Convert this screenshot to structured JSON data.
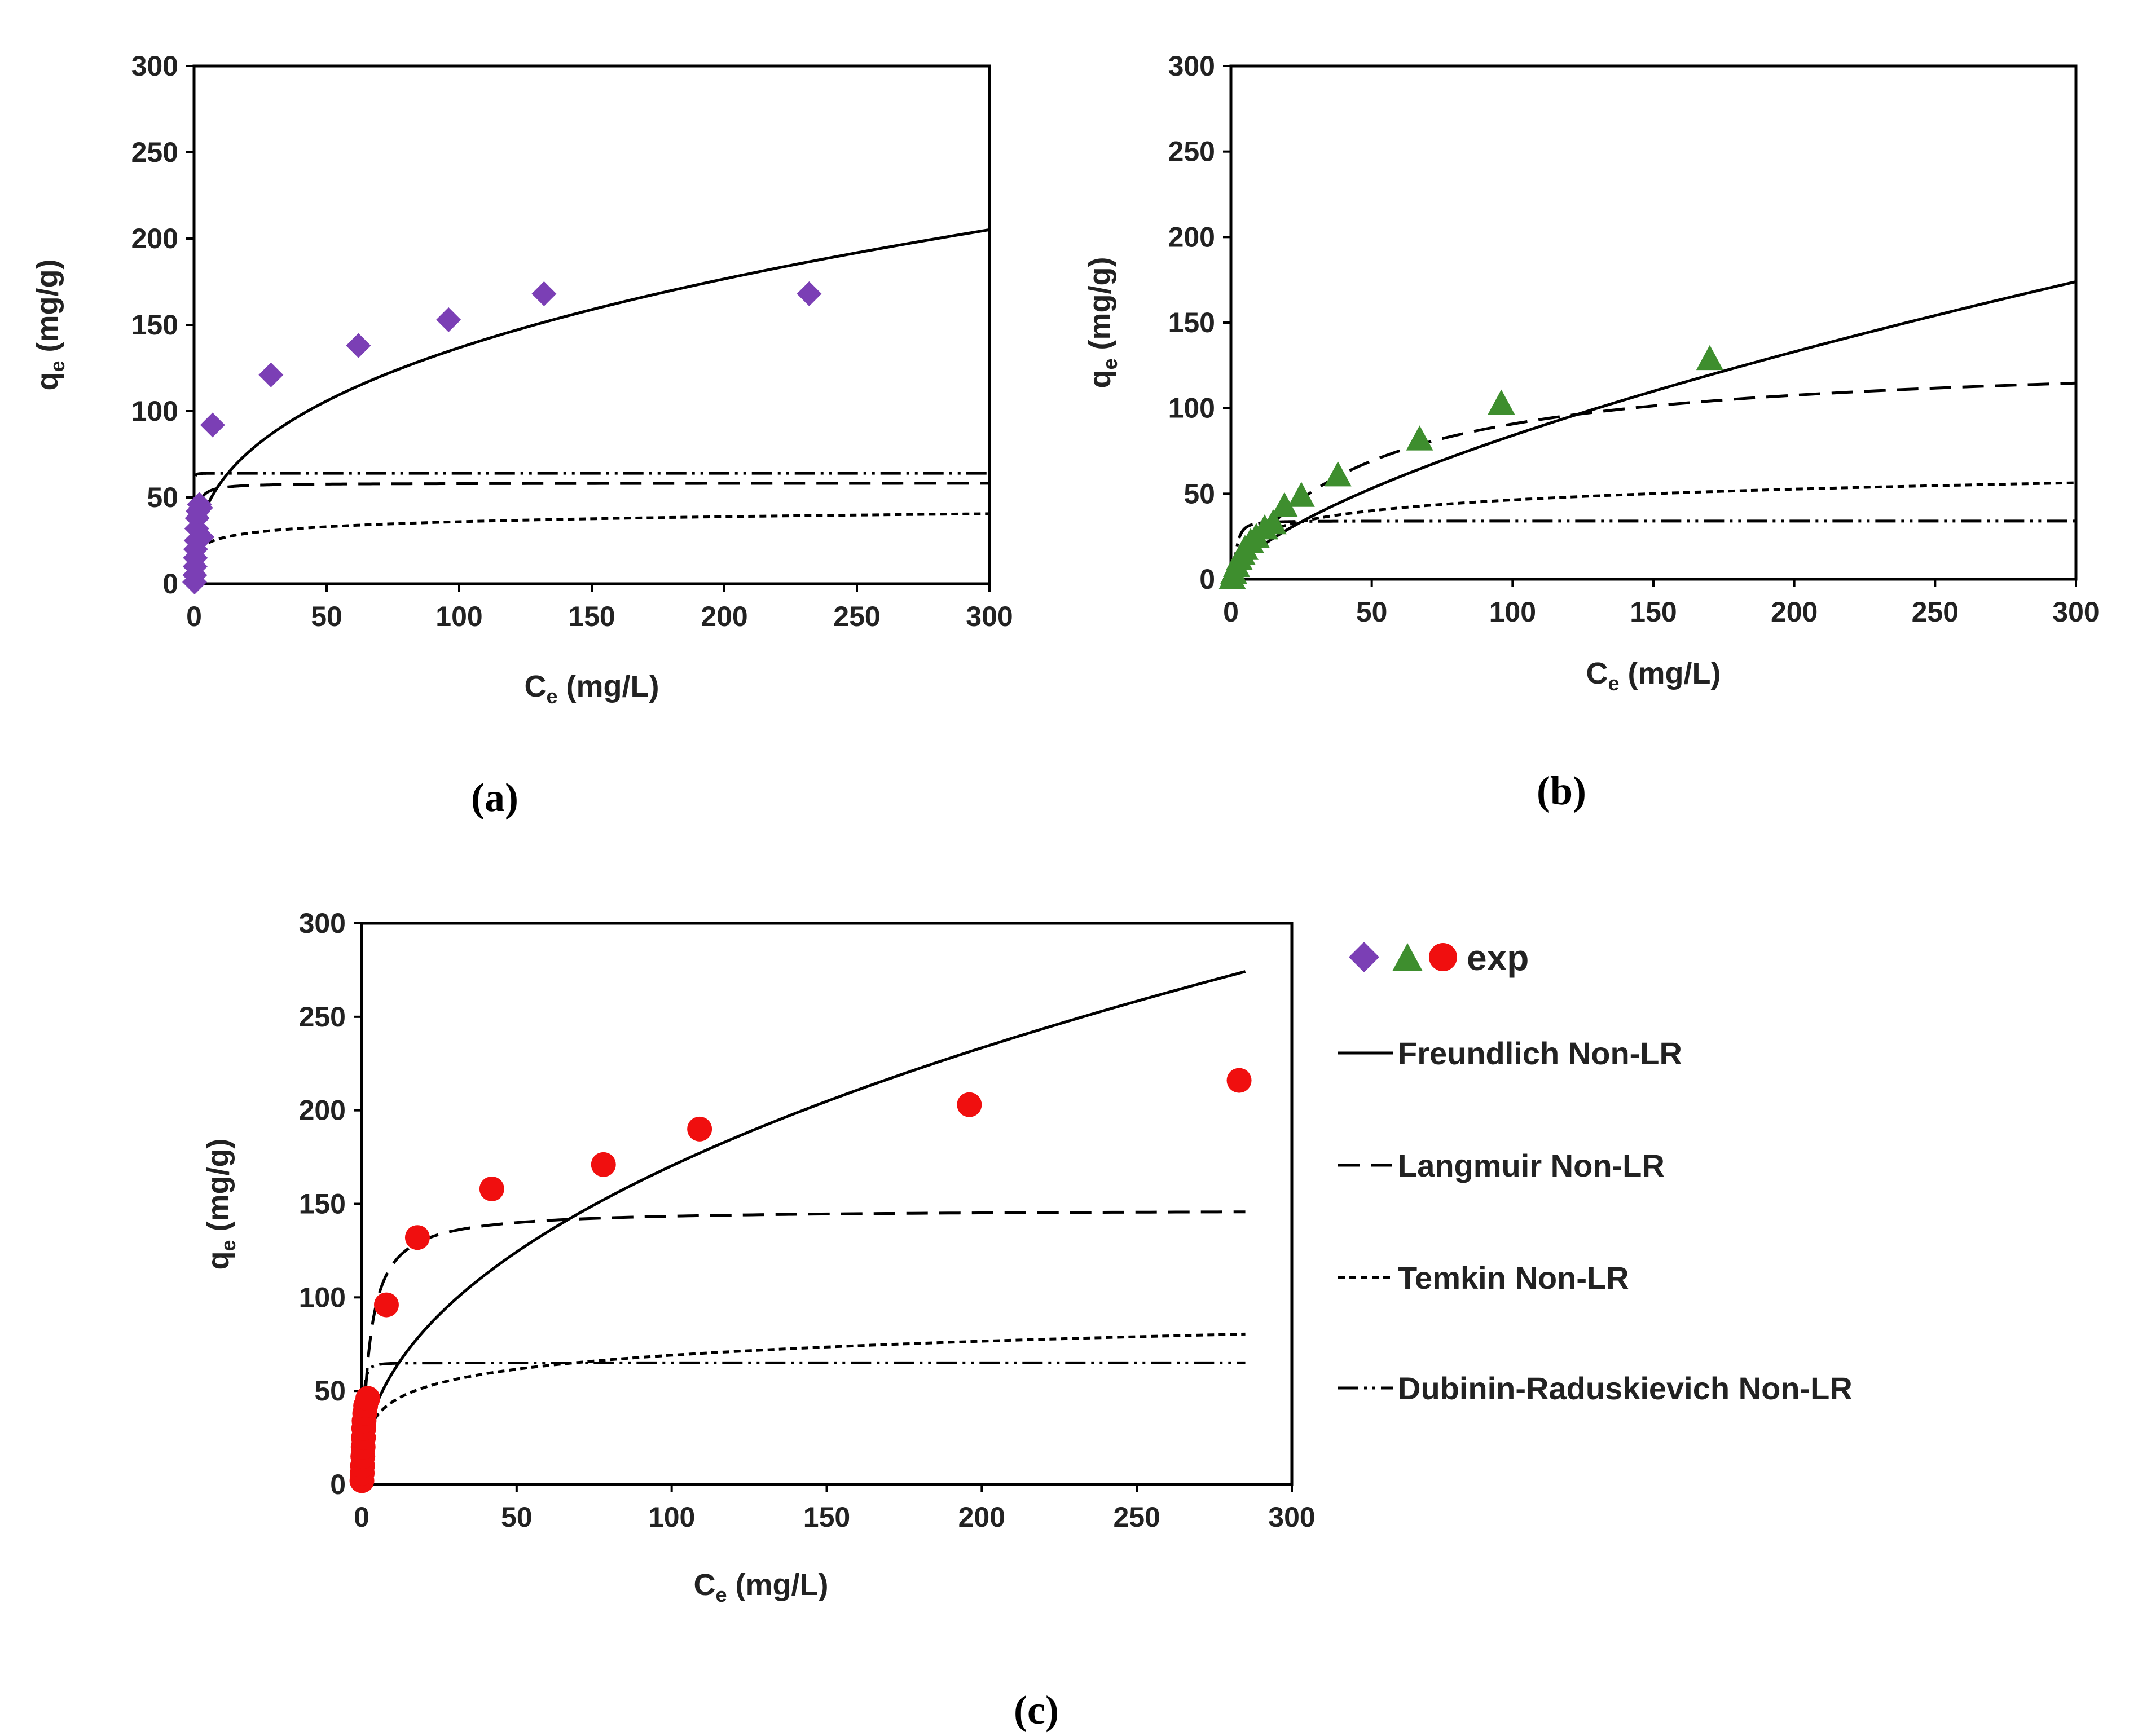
{
  "figure": {
    "panel_labels": [
      "(a)",
      "(b)",
      "(c)"
    ]
  },
  "legend": {
    "exp_label": "exp",
    "entries": [
      {
        "label": "Freundlich Non-LR",
        "style": "solid"
      },
      {
        "label": "Langmuir Non-LR",
        "style": "longdash"
      },
      {
        "label": "Temkin Non-LR",
        "style": "shortdash"
      },
      {
        "label": "Dubinin-Raduskievich Non-LR",
        "style": "dashdotdot"
      }
    ]
  },
  "chart_data": [
    {
      "panel": "(a)",
      "type": "scatter",
      "xlabel_main": "C",
      "xlabel_sub": "e",
      "xlabel_unit": " (mg/L)",
      "ylabel_main": "q",
      "ylabel_sub": "e",
      "ylabel_unit": " (mg/g)",
      "xlim": [
        0,
        300
      ],
      "ylim": [
        0,
        300
      ],
      "xticks": [
        0,
        50,
        100,
        150,
        200,
        250,
        300
      ],
      "yticks": [
        0,
        50,
        100,
        150,
        200,
        250,
        300
      ],
      "marker": "diamond",
      "marker_color": "#7B3FB5",
      "series": [
        {
          "name": "exp",
          "x": [
            0.2,
            0.3,
            0.4,
            0.5,
            0.6,
            0.8,
            1.0,
            1.2,
            1.5,
            2.0,
            2.5,
            3.0,
            7,
            29,
            62,
            96,
            132,
            232
          ],
          "y": [
            1,
            5,
            10,
            15,
            20,
            25,
            32,
            38,
            42,
            46,
            44,
            27,
            92,
            121,
            138,
            153,
            168,
            168
          ]
        },
        {
          "name": "Freundlich Non-LR",
          "model": "freundlich",
          "params": {
            "K": 25.0,
            "n": 2.71
          },
          "xrange": [
            0.5,
            300
          ]
        },
        {
          "name": "Langmuir Non-LR",
          "model": "langmuir",
          "params": {
            "qm": 58.3,
            "KL": 2.0
          },
          "xrange": [
            0.5,
            300
          ]
        },
        {
          "name": "Temkin Non-LR",
          "model": "temkin",
          "params": {
            "A": 52.0,
            "B": 4.2
          },
          "xrange": [
            0.5,
            300
          ]
        },
        {
          "name": "Dubinin-Raduskievich Non-LR",
          "model": "dr",
          "params": {
            "qm": 64.0,
            "k": 0.02
          },
          "xrange": [
            0.5,
            300
          ]
        }
      ]
    },
    {
      "panel": "(b)",
      "type": "scatter",
      "xlabel_main": "C",
      "xlabel_sub": "e",
      "xlabel_unit": " (mg/L)",
      "ylabel_main": "q",
      "ylabel_sub": "e",
      "ylabel_unit": " (mg/g)",
      "xlim": [
        0,
        300
      ],
      "ylim": [
        0,
        300
      ],
      "xticks": [
        0,
        50,
        100,
        150,
        200,
        250,
        300
      ],
      "yticks": [
        0,
        50,
        100,
        150,
        200,
        250,
        300
      ],
      "marker": "triangle",
      "marker_color": "#3E8E2E",
      "series": [
        {
          "name": "exp",
          "x": [
            0.5,
            1,
            2,
            3,
            4,
            5,
            7,
            9,
            12,
            15,
            19,
            25,
            38,
            67,
            96,
            170
          ],
          "y": [
            1,
            4,
            8,
            12,
            15,
            18,
            22,
            25,
            30,
            33,
            43,
            49,
            61,
            82,
            103,
            129
          ]
        },
        {
          "name": "Freundlich Non-LR",
          "model": "freundlich",
          "params": {
            "K": 3.98,
            "n": 1.51
          },
          "xrange": [
            0.01,
            300
          ]
        },
        {
          "name": "Langmuir Non-LR",
          "model": "langmuir",
          "params": {
            "qm": 132.0,
            "KL": 0.022
          },
          "xrange": [
            0.01,
            300
          ]
        },
        {
          "name": "Temkin Non-LR",
          "model": "temkin",
          "params": {
            "A": 1.63,
            "B": 9.1
          },
          "xrange": [
            1,
            300
          ]
        },
        {
          "name": "Dubinin-Raduskievich Non-LR",
          "model": "dr",
          "params": {
            "qm": 34.0,
            "k": 4.0
          },
          "xrange": [
            0.01,
            300
          ]
        }
      ]
    },
    {
      "panel": "(c)",
      "type": "scatter",
      "xlabel_main": "C",
      "xlabel_sub": "e",
      "xlabel_unit": " (mg/L)",
      "ylabel_main": "q",
      "ylabel_sub": "e",
      "ylabel_unit": " (mg/g)",
      "xlim": [
        0,
        300
      ],
      "ylim": [
        0,
        300
      ],
      "xticks": [
        0,
        50,
        100,
        150,
        200,
        250,
        300
      ],
      "yticks": [
        0,
        50,
        100,
        150,
        200,
        250,
        300
      ],
      "marker": "circle",
      "marker_color": "#F00F0F",
      "series": [
        {
          "name": "exp",
          "x": [
            0.1,
            0.2,
            0.3,
            0.4,
            0.5,
            0.6,
            0.7,
            0.8,
            1.0,
            1.3,
            2.0,
            8,
            18,
            42,
            78,
            109,
            196,
            283
          ],
          "y": [
            2,
            6,
            10,
            15,
            20,
            25,
            30,
            34,
            38,
            42,
            46,
            96,
            132,
            158,
            171,
            190,
            203,
            216
          ]
        },
        {
          "name": "Freundlich Non-LR",
          "model": "freundlich",
          "params": {
            "K": 21.0,
            "n": 2.2
          },
          "xrange": [
            0.5,
            285
          ]
        },
        {
          "name": "Langmuir Non-LR",
          "model": "langmuir",
          "params": {
            "qm": 147.0,
            "KL": 0.4
          },
          "xrange": [
            0.3,
            285
          ]
        },
        {
          "name": "Temkin Non-LR",
          "model": "temkin",
          "params": {
            "A": 6.0,
            "B": 10.8
          },
          "xrange": [
            1.5,
            285
          ]
        },
        {
          "name": "Dubinin-Raduskievich Non-LR",
          "model": "dr",
          "params": {
            "qm": 65.0,
            "k": 0.5
          },
          "xrange": [
            0.3,
            285
          ]
        }
      ]
    }
  ]
}
